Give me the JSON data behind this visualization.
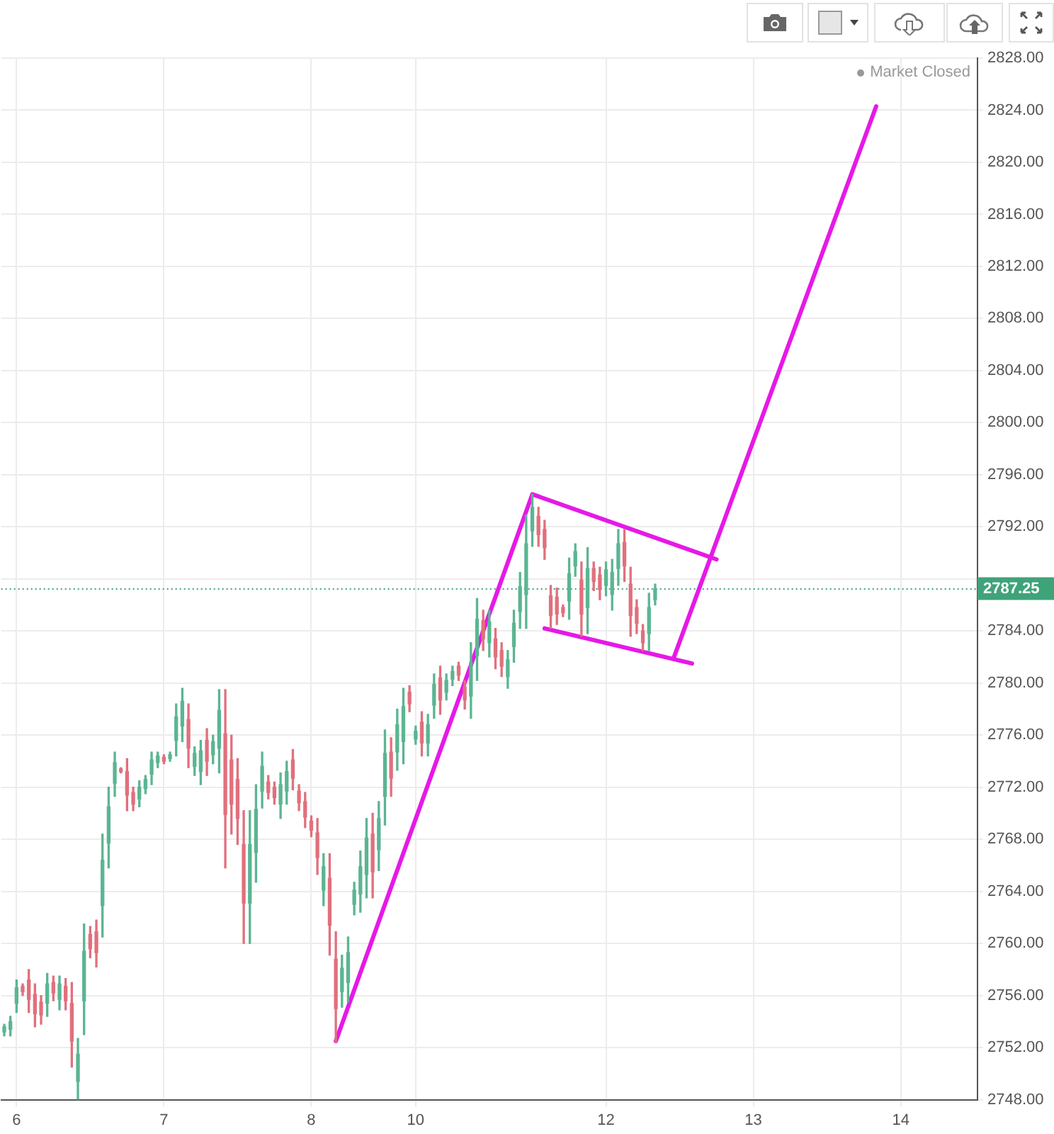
{
  "chart_data": {
    "type": "candlestick",
    "categories": [
      null,
      null,
      "6",
      null,
      null,
      null,
      null,
      null,
      null,
      null,
      null,
      null,
      null,
      null,
      null,
      null,
      null,
      null,
      null,
      null,
      null,
      null,
      null,
      null,
      null,
      null,
      "7",
      null,
      null,
      null,
      null,
      null,
      null,
      null,
      null,
      null,
      null,
      null,
      null,
      null,
      null,
      null,
      null,
      null,
      null,
      null,
      null,
      null,
      null,
      null,
      "8",
      null,
      null,
      null,
      null,
      null,
      null,
      null,
      null,
      null,
      null,
      null,
      null,
      null,
      null,
      null,
      null,
      "10",
      null,
      null,
      null,
      null,
      null,
      null,
      null,
      null,
      null,
      null,
      null,
      null,
      null,
      null,
      null,
      null,
      null,
      null,
      null,
      null,
      null,
      null,
      null,
      null,
      null,
      null,
      null,
      null,
      null,
      null,
      "12",
      null,
      null,
      null,
      null,
      null,
      null,
      null,
      null,
      null,
      null,
      null,
      null,
      null,
      null,
      null,
      null,
      null,
      null,
      null,
      null,
      null,
      null,
      null,
      "13",
      null,
      null,
      null,
      null,
      null,
      null,
      null,
      null,
      null,
      null,
      null,
      null,
      null,
      null,
      null,
      null,
      null,
      null,
      null,
      null,
      null,
      null,
      null,
      "14",
      null,
      null,
      null,
      null,
      null,
      null,
      null,
      null,
      null,
      null,
      null,
      null
    ],
    "ohlc": [
      [
        2753.2,
        2753.8,
        2752.9,
        2753.6
      ],
      [
        2753.4,
        2754.4,
        2752.9,
        2754.0
      ],
      [
        2755.4,
        2757.2,
        2754.7,
        2756.6
      ],
      [
        2756.7,
        2756.9,
        2756.0,
        2756.3
      ],
      [
        2757.2,
        2758.0,
        2754.7,
        2755.7
      ],
      [
        2756.1,
        2756.9,
        2753.6,
        2754.6
      ],
      [
        2755.5,
        2756.0,
        2753.8,
        2754.5
      ],
      [
        2755.4,
        2757.7,
        2754.4,
        2756.9
      ],
      [
        2757.0,
        2757.5,
        2755.6,
        2756.2
      ],
      [
        2755.7,
        2757.5,
        2754.9,
        2756.9
      ],
      [
        2756.7,
        2757.3,
        2754.9,
        2755.6
      ],
      [
        2755.4,
        2757.0,
        2750.5,
        2752.5
      ],
      [
        2749.4,
        2752.7,
        2748.0,
        2751.5
      ],
      [
        2755.6,
        2761.5,
        2753.0,
        2759.4
      ],
      [
        2760.7,
        2761.3,
        2758.9,
        2759.6
      ],
      [
        2760.9,
        2761.8,
        2758.2,
        2759.3
      ],
      [
        2762.9,
        2768.4,
        2760.5,
        2766.4
      ],
      [
        2767.7,
        2772.0,
        2765.8,
        2770.5
      ],
      [
        2772.3,
        2774.7,
        2771.3,
        2773.9
      ],
      [
        2773.4,
        2773.5,
        2773.1,
        2773.2
      ],
      [
        2773.2,
        2774.2,
        2770.2,
        2771.4
      ],
      [
        2771.6,
        2772.0,
        2770.2,
        2770.7
      ],
      [
        2771.1,
        2772.5,
        2770.5,
        2772.0
      ],
      [
        2771.9,
        2772.9,
        2771.5,
        2772.6
      ],
      [
        2773.0,
        2774.7,
        2772.2,
        2774.1
      ],
      [
        2773.9,
        2774.7,
        2773.5,
        2774.4
      ],
      [
        2774.3,
        2774.5,
        2773.8,
        2774.0
      ],
      [
        2774.2,
        2774.7,
        2774.0,
        2774.5
      ],
      [
        2775.6,
        2778.4,
        2774.4,
        2777.4
      ],
      [
        2776.7,
        2779.6,
        2775.5,
        2778.6
      ],
      [
        2777.2,
        2778.4,
        2773.5,
        2775.0
      ],
      [
        2773.6,
        2775.1,
        2772.9,
        2774.6
      ],
      [
        2773.2,
        2775.6,
        2772.2,
        2774.8
      ],
      [
        2775.6,
        2776.5,
        2772.9,
        2774.0
      ],
      [
        2774.5,
        2776.0,
        2773.8,
        2775.5
      ],
      [
        2775.0,
        2779.5,
        2773.1,
        2777.9
      ],
      [
        2776.1,
        2779.5,
        2765.8,
        2769.9
      ],
      [
        2774.1,
        2776.0,
        2768.4,
        2770.7
      ],
      [
        2772.6,
        2774.2,
        2767.6,
        2769.6
      ],
      [
        2767.6,
        2770.2,
        2760.0,
        2763.1
      ],
      [
        2763.1,
        2770.2,
        2760.0,
        2767.6
      ],
      [
        2767.0,
        2772.2,
        2764.7,
        2770.3
      ],
      [
        2771.7,
        2774.7,
        2770.4,
        2773.6
      ],
      [
        2772.4,
        2772.9,
        2771.1,
        2771.6
      ],
      [
        2772.0,
        2772.4,
        2770.7,
        2771.2
      ],
      [
        2770.7,
        2773.1,
        2769.6,
        2772.2
      ],
      [
        2771.7,
        2774.0,
        2770.7,
        2773.2
      ],
      [
        2774.1,
        2774.9,
        2771.8,
        2772.7
      ],
      [
        2771.7,
        2772.2,
        2770.2,
        2770.8
      ],
      [
        2770.9,
        2771.6,
        2768.9,
        2769.7
      ],
      [
        2769.4,
        2769.8,
        2768.2,
        2768.7
      ],
      [
        2768.5,
        2769.6,
        2765.3,
        2766.6
      ],
      [
        2764.1,
        2766.9,
        2762.9,
        2765.9
      ],
      [
        2765.0,
        2766.9,
        2759.1,
        2761.4
      ],
      [
        2758.8,
        2760.9,
        2752.4,
        2755.0
      ],
      [
        2756.3,
        2759.1,
        2755.1,
        2758.1
      ],
      [
        2757.0,
        2760.5,
        2755.5,
        2759.3
      ],
      [
        2763.0,
        2764.7,
        2762.2,
        2764.1
      ],
      [
        2763.8,
        2767.1,
        2762.4,
        2765.9
      ],
      [
        2765.3,
        2769.6,
        2763.5,
        2768.1
      ],
      [
        2768.4,
        2770.0,
        2763.5,
        2765.5
      ],
      [
        2767.2,
        2770.9,
        2765.6,
        2769.6
      ],
      [
        2771.3,
        2776.4,
        2769.1,
        2774.6
      ],
      [
        2774.7,
        2775.8,
        2771.3,
        2772.7
      ],
      [
        2774.7,
        2778.0,
        2773.3,
        2776.8
      ],
      [
        2775.5,
        2779.6,
        2773.8,
        2778.2
      ],
      [
        2779.3,
        2779.8,
        2777.8,
        2778.4
      ],
      [
        2775.7,
        2776.7,
        2775.3,
        2776.3
      ],
      [
        2777.0,
        2777.8,
        2774.4,
        2775.4
      ],
      [
        2775.4,
        2777.6,
        2774.4,
        2776.8
      ],
      [
        2778.3,
        2780.7,
        2777.3,
        2779.9
      ],
      [
        2780.4,
        2781.3,
        2777.6,
        2778.7
      ],
      [
        2779.3,
        2780.7,
        2778.7,
        2780.2
      ],
      [
        2780.3,
        2781.3,
        2779.8,
        2780.9
      ],
      [
        2781.3,
        2781.6,
        2780.2,
        2780.6
      ],
      [
        2779.7,
        2780.2,
        2778.0,
        2778.7
      ],
      [
        2779.0,
        2783.1,
        2777.3,
        2781.6
      ],
      [
        2782.1,
        2786.5,
        2780.2,
        2784.9
      ],
      [
        2784.8,
        2785.6,
        2782.5,
        2783.4
      ],
      [
        2783.1,
        2785.6,
        2782.0,
        2784.7
      ],
      [
        2783.4,
        2784.2,
        2781.1,
        2782.0
      ],
      [
        2782.5,
        2783.1,
        2780.5,
        2781.3
      ],
      [
        2780.5,
        2782.5,
        2779.6,
        2781.8
      ],
      [
        2782.8,
        2785.6,
        2781.6,
        2784.6
      ],
      [
        2785.5,
        2788.5,
        2784.2,
        2787.4
      ],
      [
        2786.8,
        2792.9,
        2784.2,
        2790.7
      ],
      [
        2791.7,
        2794.5,
        2790.5,
        2793.5
      ],
      [
        2792.8,
        2793.5,
        2790.5,
        2791.4
      ],
      [
        2791.8,
        2792.5,
        2789.5,
        2790.4
      ],
      [
        2786.7,
        2787.5,
        2784.2,
        2785.2
      ],
      [
        2786.6,
        2787.3,
        2784.5,
        2785.3
      ],
      [
        2785.8,
        2786.0,
        2785.1,
        2785.4
      ],
      [
        2786.3,
        2789.6,
        2784.9,
        2788.4
      ],
      [
        2789.0,
        2790.7,
        2788.2,
        2790.1
      ],
      [
        2787.9,
        2789.3,
        2783.6,
        2785.3
      ],
      [
        2785.8,
        2790.4,
        2783.8,
        2788.8
      ],
      [
        2788.8,
        2789.3,
        2787.1,
        2787.8
      ],
      [
        2788.3,
        2788.9,
        2786.4,
        2787.2
      ],
      [
        2787.5,
        2789.3,
        2786.7,
        2788.7
      ],
      [
        2786.8,
        2789.5,
        2785.6,
        2788.5
      ],
      [
        2788.8,
        2791.8,
        2787.5,
        2790.7
      ],
      [
        2790.8,
        2791.8,
        2787.8,
        2789.0
      ],
      [
        2787.6,
        2788.9,
        2783.6,
        2785.2
      ],
      [
        2785.8,
        2786.4,
        2783.8,
        2784.6
      ],
      [
        2784.0,
        2784.5,
        2782.5,
        2783.1
      ],
      [
        2783.8,
        2786.9,
        2782.5,
        2785.8
      ],
      [
        2786.4,
        2787.6,
        2786.0,
        2787.25
      ],
      null,
      null,
      null,
      null,
      null,
      null,
      null,
      null,
      null,
      null,
      null,
      null,
      null,
      null,
      null,
      null,
      null,
      null,
      null,
      null,
      null,
      null,
      null,
      null,
      null,
      null,
      null,
      null,
      null,
      null,
      null,
      null,
      null,
      null,
      null,
      null,
      null,
      null,
      null,
      null,
      null,
      null,
      null,
      null,
      null,
      null,
      null,
      null,
      null,
      null,
      null,
      null
    ],
    "colors": [
      "#5bb592",
      "#5bb592",
      "#5bb592",
      "#e0707d",
      "#e0707d",
      "#e0707d",
      "#e0707d",
      "#5bb592",
      "#e0707d",
      "#5bb592",
      "#e0707d",
      "#e0707d",
      "#5bb592",
      "#5bb592",
      "#e0707d",
      "#e0707d",
      "#5bb592",
      "#5bb592",
      "#5bb592",
      "#e0707d",
      "#e0707d",
      "#e0707d",
      "#5bb592",
      "#5bb592",
      "#5bb592",
      "#5bb592",
      "#e0707d",
      "#5bb592",
      "#5bb592",
      "#5bb592",
      "#e0707d",
      "#5bb592",
      "#5bb592",
      "#e0707d",
      "#5bb592",
      "#5bb592",
      "#e0707d",
      "#e0707d",
      "#e0707d",
      "#e0707d",
      "#5bb592",
      "#5bb592",
      "#5bb592",
      "#e0707d",
      "#e0707d",
      "#5bb592",
      "#5bb592",
      "#e0707d",
      "#e0707d",
      "#e0707d",
      "#e0707d",
      "#e0707d",
      "#5bb592",
      "#e0707d",
      "#e0707d",
      "#5bb592",
      "#5bb592",
      "#5bb592",
      "#5bb592",
      "#5bb592",
      "#e0707d",
      "#5bb592",
      "#5bb592",
      "#e0707d",
      "#5bb592",
      "#5bb592",
      "#e0707d",
      "#5bb592",
      "#e0707d",
      "#5bb592",
      "#5bb592",
      "#e0707d",
      "#5bb592",
      "#5bb592",
      "#e0707d",
      "#e0707d",
      "#5bb592",
      "#5bb592",
      "#e0707d",
      "#5bb592",
      "#e0707d",
      "#e0707d",
      "#5bb592",
      "#5bb592",
      "#5bb592",
      "#5bb592",
      "#5bb592",
      "#e0707d",
      "#e0707d",
      "#e0707d",
      "#e0707d",
      "#e0707d",
      "#5bb592",
      "#5bb592",
      "#e0707d",
      "#5bb592",
      "#e0707d",
      "#e0707d",
      "#5bb592",
      "#5bb592",
      "#5bb592",
      "#e0707d",
      "#e0707d",
      "#e0707d",
      "#e0707d",
      "#5bb592",
      "#5bb592",
      null,
      null,
      null,
      null,
      null,
      null,
      null,
      null,
      null,
      null,
      null,
      null,
      null,
      null,
      null,
      null,
      null,
      null,
      null,
      null,
      null,
      null,
      null,
      null,
      null,
      null,
      null,
      null,
      null,
      null,
      null,
      null,
      null,
      null,
      null,
      null,
      null,
      null,
      null,
      null,
      null,
      null,
      null,
      null,
      null,
      null,
      null,
      null,
      null,
      null,
      null,
      null
    ],
    "series": [
      {
        "type": "line",
        "color": "#e619e6",
        "values": [
          null,
          null,
          null,
          null,
          null,
          null,
          null,
          null,
          null,
          null,
          null,
          null,
          null,
          null,
          null,
          null,
          null,
          null,
          null,
          null,
          null,
          null,
          null,
          null,
          null,
          null,
          null,
          null,
          null,
          null,
          null,
          null,
          null,
          null,
          null,
          null,
          null,
          null,
          null,
          null,
          null,
          null,
          null,
          null,
          null,
          null,
          null,
          null,
          null,
          null,
          null,
          null,
          null,
          null,
          2752.5,
          null,
          null,
          null,
          null,
          null,
          null,
          null,
          null,
          null,
          null,
          null,
          null,
          null,
          null,
          null,
          null,
          null,
          null,
          null,
          null,
          null,
          null,
          null,
          null,
          null,
          null,
          null,
          null,
          null,
          null,
          null,
          2794.5,
          null,
          null,
          null,
          null,
          null,
          null,
          null,
          null,
          null,
          null,
          null,
          null,
          null,
          null,
          null,
          null,
          null,
          null,
          null,
          null,
          null,
          null,
          null,
          null,
          null,
          null,
          null,
          null,
          null,
          2789.5,
          null,
          null,
          null,
          null,
          null,
          null,
          null,
          null,
          null,
          null,
          null,
          null,
          null,
          null,
          null,
          null,
          null,
          null,
          null,
          null,
          null,
          null,
          null,
          null,
          null,
          null,
          null,
          null,
          null,
          null,
          null,
          null,
          null,
          null,
          null,
          null,
          null,
          null,
          null,
          null,
          null,
          null
        ]
      },
      {
        "type": "line",
        "color": "#e619e6",
        "values": [
          null,
          null,
          null,
          null,
          null,
          null,
          null,
          null,
          null,
          null,
          null,
          null,
          null,
          null,
          null,
          null,
          null,
          null,
          null,
          null,
          null,
          null,
          null,
          null,
          null,
          null,
          null,
          null,
          null,
          null,
          null,
          null,
          null,
          null,
          null,
          null,
          null,
          null,
          null,
          null,
          null,
          null,
          null,
          null,
          null,
          null,
          null,
          null,
          null,
          null,
          null,
          null,
          null,
          null,
          null,
          null,
          null,
          null,
          null,
          null,
          null,
          null,
          null,
          null,
          null,
          null,
          null,
          null,
          null,
          null,
          null,
          null,
          null,
          null,
          null,
          null,
          null,
          null,
          null,
          null,
          null,
          null,
          null,
          null,
          null,
          null,
          null,
          null,
          2784.2,
          null,
          null,
          null,
          null,
          null,
          null,
          null,
          null,
          null,
          null,
          null,
          null,
          null,
          null,
          null,
          null,
          null,
          null,
          null,
          null,
          null,
          null,
          null,
          2781.5,
          null,
          null,
          null,
          null,
          null,
          null,
          null,
          null,
          null,
          null,
          null,
          null,
          null,
          null,
          null,
          null,
          null,
          null,
          null,
          null,
          null,
          null,
          null,
          null,
          null,
          null,
          null,
          null,
          null,
          null,
          null,
          null,
          null,
          null,
          null,
          null,
          null,
          null,
          null,
          null,
          null,
          null,
          null,
          null,
          null,
          null
        ]
      },
      {
        "type": "line",
        "color": "#e619e6",
        "values": [
          null,
          null,
          null,
          null,
          null,
          null,
          null,
          null,
          null,
          null,
          null,
          null,
          null,
          null,
          null,
          null,
          null,
          null,
          null,
          null,
          null,
          null,
          null,
          null,
          null,
          null,
          null,
          null,
          null,
          null,
          null,
          null,
          null,
          null,
          null,
          null,
          null,
          null,
          null,
          null,
          null,
          null,
          null,
          null,
          null,
          null,
          null,
          null,
          null,
          null,
          null,
          null,
          null,
          null,
          null,
          null,
          null,
          null,
          null,
          null,
          null,
          null,
          null,
          null,
          null,
          null,
          null,
          null,
          null,
          null,
          null,
          null,
          null,
          null,
          null,
          null,
          null,
          null,
          null,
          null,
          null,
          null,
          null,
          null,
          null,
          null,
          null,
          null,
          null,
          null,
          null,
          null,
          null,
          null,
          null,
          null,
          null,
          null,
          null,
          null,
          null,
          null,
          null,
          null,
          null,
          null,
          null,
          null,
          null,
          2781.9,
          null,
          null,
          null,
          null,
          null,
          null,
          null,
          null,
          null,
          null,
          null,
          null,
          null,
          null,
          null,
          null,
          null,
          null,
          null,
          null,
          null,
          null,
          null,
          null,
          null,
          null,
          null,
          null,
          null,
          null,
          null,
          null,
          2824.3,
          null,
          null,
          null,
          null,
          null,
          null,
          null,
          null,
          null,
          null,
          null,
          null,
          null,
          null,
          null,
          null
        ]
      }
    ],
    "ylim": [
      2748,
      2828
    ],
    "yticks": [
      {
        "value": 2748,
        "label": "2748.00"
      },
      {
        "value": 2752,
        "label": "2752.00"
      },
      {
        "value": 2756,
        "label": "2756.00"
      },
      {
        "value": 2760,
        "label": "2760.00"
      },
      {
        "value": 2764,
        "label": "2764.00"
      },
      {
        "value": 2768,
        "label": "2768.00"
      },
      {
        "value": 2772,
        "label": "2772.00"
      },
      {
        "value": 2776,
        "label": "2776.00"
      },
      {
        "value": 2780,
        "label": "2780.00"
      },
      {
        "value": 2784,
        "label": "2784.00"
      },
      {
        "value": 2788,
        "label": null
      },
      {
        "value": 2792,
        "label": "2792.00"
      },
      {
        "value": 2796,
        "label": "2796.00"
      },
      {
        "value": 2800,
        "label": "2800.00"
      },
      {
        "value": 2804,
        "label": "2804.00"
      },
      {
        "value": 2808,
        "label": "2808.00"
      },
      {
        "value": 2812,
        "label": "2812.00"
      },
      {
        "value": 2816,
        "label": "2816.00"
      },
      {
        "value": 2820,
        "label": "2820.00"
      },
      {
        "value": 2824,
        "label": "2824.00"
      },
      {
        "value": 2828,
        "label": "2828.00"
      }
    ],
    "ref_lines": [
      {
        "axis": "y",
        "value": 2787.25,
        "label": "2787.25",
        "color": "#3fa37a",
        "line_style": "dotted"
      }
    ],
    "annotations": [
      "Market Closed"
    ],
    "grid": true
  }
}
